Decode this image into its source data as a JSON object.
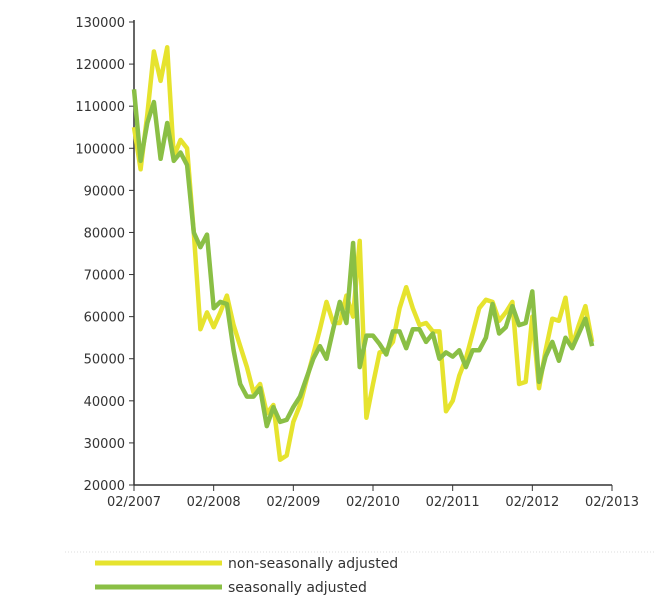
{
  "chart_data": {
    "type": "line",
    "title": "",
    "xlabel": "",
    "ylabel": "",
    "x_start": "02/2007",
    "x_unit": "month",
    "ylim": [
      20000,
      130000
    ],
    "yticks": [
      20000,
      30000,
      40000,
      50000,
      60000,
      70000,
      80000,
      90000,
      100000,
      110000,
      120000,
      130000
    ],
    "xticks": [
      "02/2007",
      "02/2008",
      "02/2009",
      "02/2010",
      "02/2011",
      "02/2012",
      "02/2013"
    ],
    "grid": false,
    "legend_position": "bottom",
    "series": [
      {
        "name": "non-seasonally adjusted",
        "color": "#e6e32e",
        "values": [
          105000,
          95000,
          108000,
          123000,
          116000,
          124000,
          98000,
          102000,
          100000,
          80000,
          57000,
          61000,
          57500,
          61000,
          65000,
          58000,
          53000,
          48000,
          42000,
          44000,
          37000,
          39000,
          26000,
          27000,
          35000,
          39000,
          45000,
          51000,
          57000,
          63500,
          58500,
          58500,
          65000,
          60000,
          78000,
          36000,
          44000,
          51500,
          52000,
          54000,
          62000,
          67000,
          62000,
          58000,
          58500,
          56500,
          56500,
          37500,
          40000,
          46000,
          50000,
          56000,
          62000,
          64000,
          63500,
          59000,
          61000,
          63500,
          44000,
          44500,
          60000,
          43000,
          52000,
          59500,
          59000,
          64500,
          53000,
          58000,
          62500,
          54000
        ]
      },
      {
        "name": "seasonally adjusted",
        "color": "#8abf45",
        "values": [
          114000,
          97000,
          106000,
          111000,
          97500,
          106000,
          97000,
          99000,
          96000,
          80000,
          76500,
          79500,
          62000,
          63500,
          63000,
          52000,
          44000,
          41000,
          41000,
          43000,
          34000,
          38500,
          35000,
          35500,
          38500,
          41000,
          45500,
          50000,
          53000,
          50000,
          57000,
          63500,
          58500,
          77500,
          48000,
          55500,
          55500,
          53500,
          51000,
          56500,
          56500,
          52500,
          57000,
          57000,
          54000,
          56000,
          50000,
          51500,
          50500,
          52000,
          48000,
          52000,
          52000,
          55000,
          63000,
          56000,
          57500,
          62500,
          58000,
          58500,
          66000,
          44500,
          50500,
          54000,
          49500,
          55000,
          52500,
          56000,
          59500,
          53000
        ]
      }
    ]
  }
}
